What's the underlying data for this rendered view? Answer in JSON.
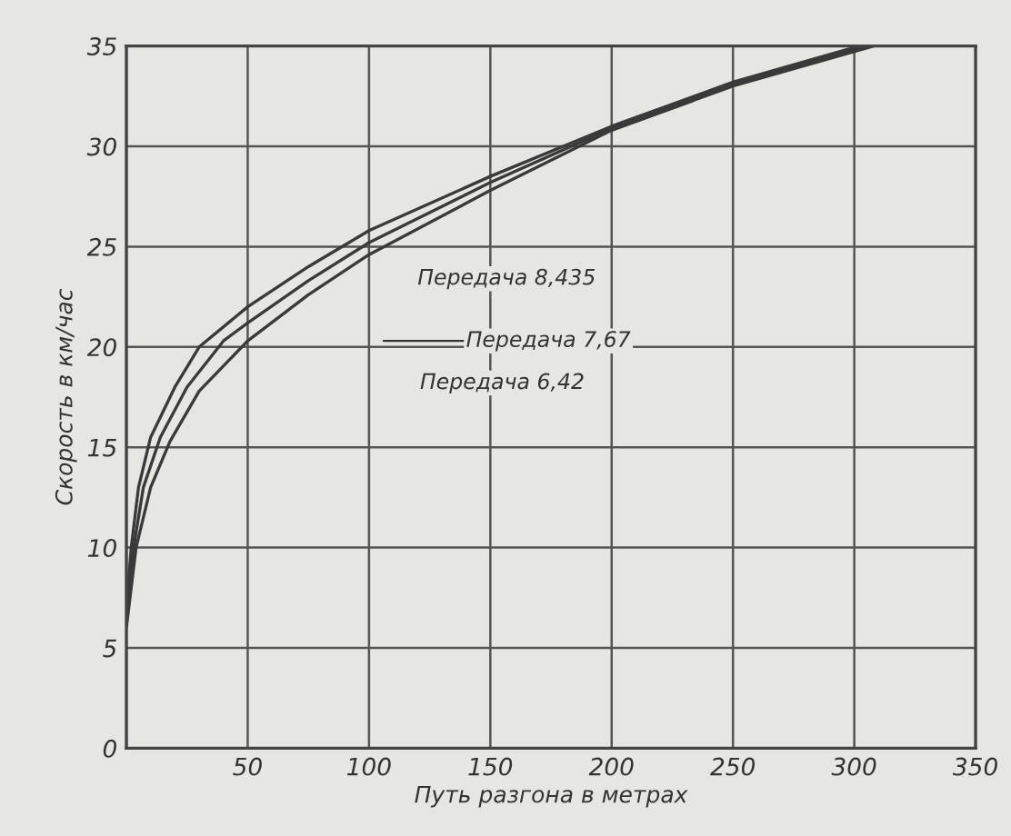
{
  "chart_data": {
    "type": "line",
    "xlabel": "Путь разгона в метрах",
    "ylabel": "Скорость в км/час",
    "xlim": [
      0,
      350
    ],
    "ylim": [
      0,
      35
    ],
    "xticks": [
      {
        "value": 0,
        "label": null
      },
      50,
      100,
      150,
      200,
      250,
      300,
      350
    ],
    "yticks": [
      0,
      5,
      10,
      15,
      20,
      25,
      30,
      35
    ],
    "grid": true,
    "marker": "none",
    "line_style": "solid",
    "annotations": [
      "Передача 8,435",
      "Передача 7,67",
      "Передача 6,42"
    ],
    "series": [
      {
        "color": "#3a3a3a",
        "x": [
          0,
          2,
          5,
          10,
          20,
          30,
          50,
          75,
          100,
          150,
          200,
          250,
          302
        ],
        "values": [
          7,
          10,
          13,
          15.5,
          18,
          20,
          22,
          24,
          25.8,
          28.5,
          31,
          33.2,
          35
        ]
      },
      {
        "color": "#3a3a3a",
        "x": [
          0,
          3,
          7,
          14,
          25,
          40,
          50,
          75,
          100,
          150,
          200,
          250,
          305
        ],
        "values": [
          6.5,
          10,
          13,
          15.5,
          18,
          20.3,
          21.2,
          23.3,
          25.2,
          28.2,
          30.9,
          33.1,
          35
        ]
      },
      {
        "color": "#3a3a3a",
        "x": [
          0,
          4,
          10,
          18,
          30,
          50,
          75,
          100,
          150,
          200,
          250,
          308
        ],
        "values": [
          6,
          10,
          13,
          15.3,
          17.8,
          20.3,
          22.6,
          24.6,
          27.8,
          30.8,
          33,
          35
        ]
      }
    ]
  }
}
